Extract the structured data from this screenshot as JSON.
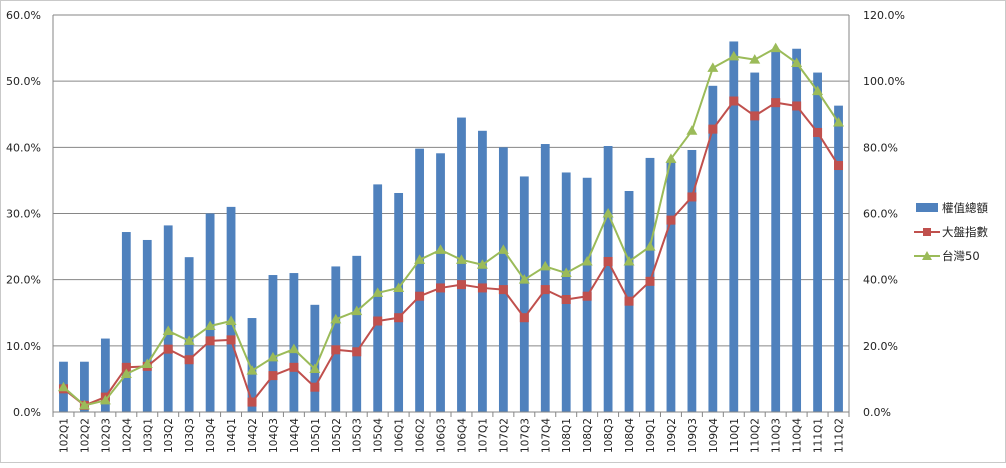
{
  "chart_data": {
    "type": "bar",
    "categories": [
      "102Q1",
      "102Q2",
      "102Q3",
      "102Q4",
      "103Q1",
      "103Q2",
      "103Q3",
      "103Q4",
      "104Q1",
      "104Q2",
      "104Q3",
      "104Q4",
      "105Q1",
      "105Q2",
      "105Q3",
      "105Q4",
      "106Q1",
      "106Q2",
      "106Q3",
      "106Q4",
      "107Q1",
      "107Q2",
      "107Q3",
      "107Q4",
      "108Q1",
      "108Q2",
      "108Q3",
      "108Q4",
      "109Q1",
      "109Q2",
      "109Q3",
      "109Q4",
      "110Q1",
      "110Q2",
      "110Q3",
      "110Q4",
      "111Q1",
      "111Q2"
    ],
    "series": [
      {
        "name": "權值總額",
        "type": "bar",
        "axis": "left",
        "color": "#4f81bd",
        "values": [
          7.6,
          7.6,
          11.1,
          27.2,
          26.0,
          28.2,
          23.4,
          30.0,
          31.0,
          14.2,
          20.7,
          21.0,
          16.2,
          22.0,
          23.6,
          34.4,
          33.1,
          39.8,
          39.1,
          44.5,
          42.5,
          40.0,
          35.6,
          40.5,
          36.2,
          35.4,
          40.2,
          33.4,
          38.4,
          37.9,
          39.6,
          49.3,
          56.0,
          51.3,
          54.8,
          54.9,
          51.3,
          46.3
        ]
      },
      {
        "name": "大盤指數",
        "type": "line",
        "axis": "right",
        "color": "#c0504d",
        "values": [
          7.0,
          2.0,
          4.5,
          13.5,
          13.8,
          19.0,
          15.8,
          21.5,
          21.8,
          3.0,
          11.0,
          13.5,
          7.5,
          18.8,
          18.2,
          27.5,
          28.5,
          35.0,
          37.5,
          38.5,
          37.5,
          37.0,
          28.5,
          37.0,
          34.0,
          35.0,
          45.5,
          33.5,
          39.5,
          58.0,
          65.0,
          85.5,
          94.0,
          89.5,
          93.5,
          92.5,
          84.5,
          74.5
        ]
      },
      {
        "name": "台灣50",
        "type": "line",
        "axis": "right",
        "color": "#9bbb59",
        "values": [
          7.5,
          2.0,
          3.5,
          11.5,
          14.5,
          24.5,
          21.5,
          26.0,
          27.5,
          12.5,
          16.5,
          19.0,
          13.0,
          28.0,
          30.5,
          36.0,
          37.5,
          46.0,
          49.0,
          46.0,
          44.5,
          49.0,
          40.0,
          44.0,
          42.0,
          45.5,
          60.0,
          45.5,
          50.0,
          76.5,
          85.0,
          104.0,
          107.5,
          106.5,
          110.0,
          105.5,
          97.0,
          87.5
        ]
      }
    ],
    "ylim_left": [
      0,
      60
    ],
    "yticks_left": [
      "0.0%",
      "10.0%",
      "20.0%",
      "30.0%",
      "40.0%",
      "50.0%",
      "60.0%"
    ],
    "ylim_right": [
      0,
      120
    ],
    "yticks_right": [
      "0.0%",
      "20.0%",
      "40.0%",
      "60.0%",
      "80.0%",
      "100.0%",
      "120.0%"
    ],
    "grid": true,
    "legend_position": "right"
  },
  "legend": {
    "items": [
      {
        "label": "權值總額"
      },
      {
        "label": "大盤指數"
      },
      {
        "label": "台灣50"
      }
    ]
  }
}
